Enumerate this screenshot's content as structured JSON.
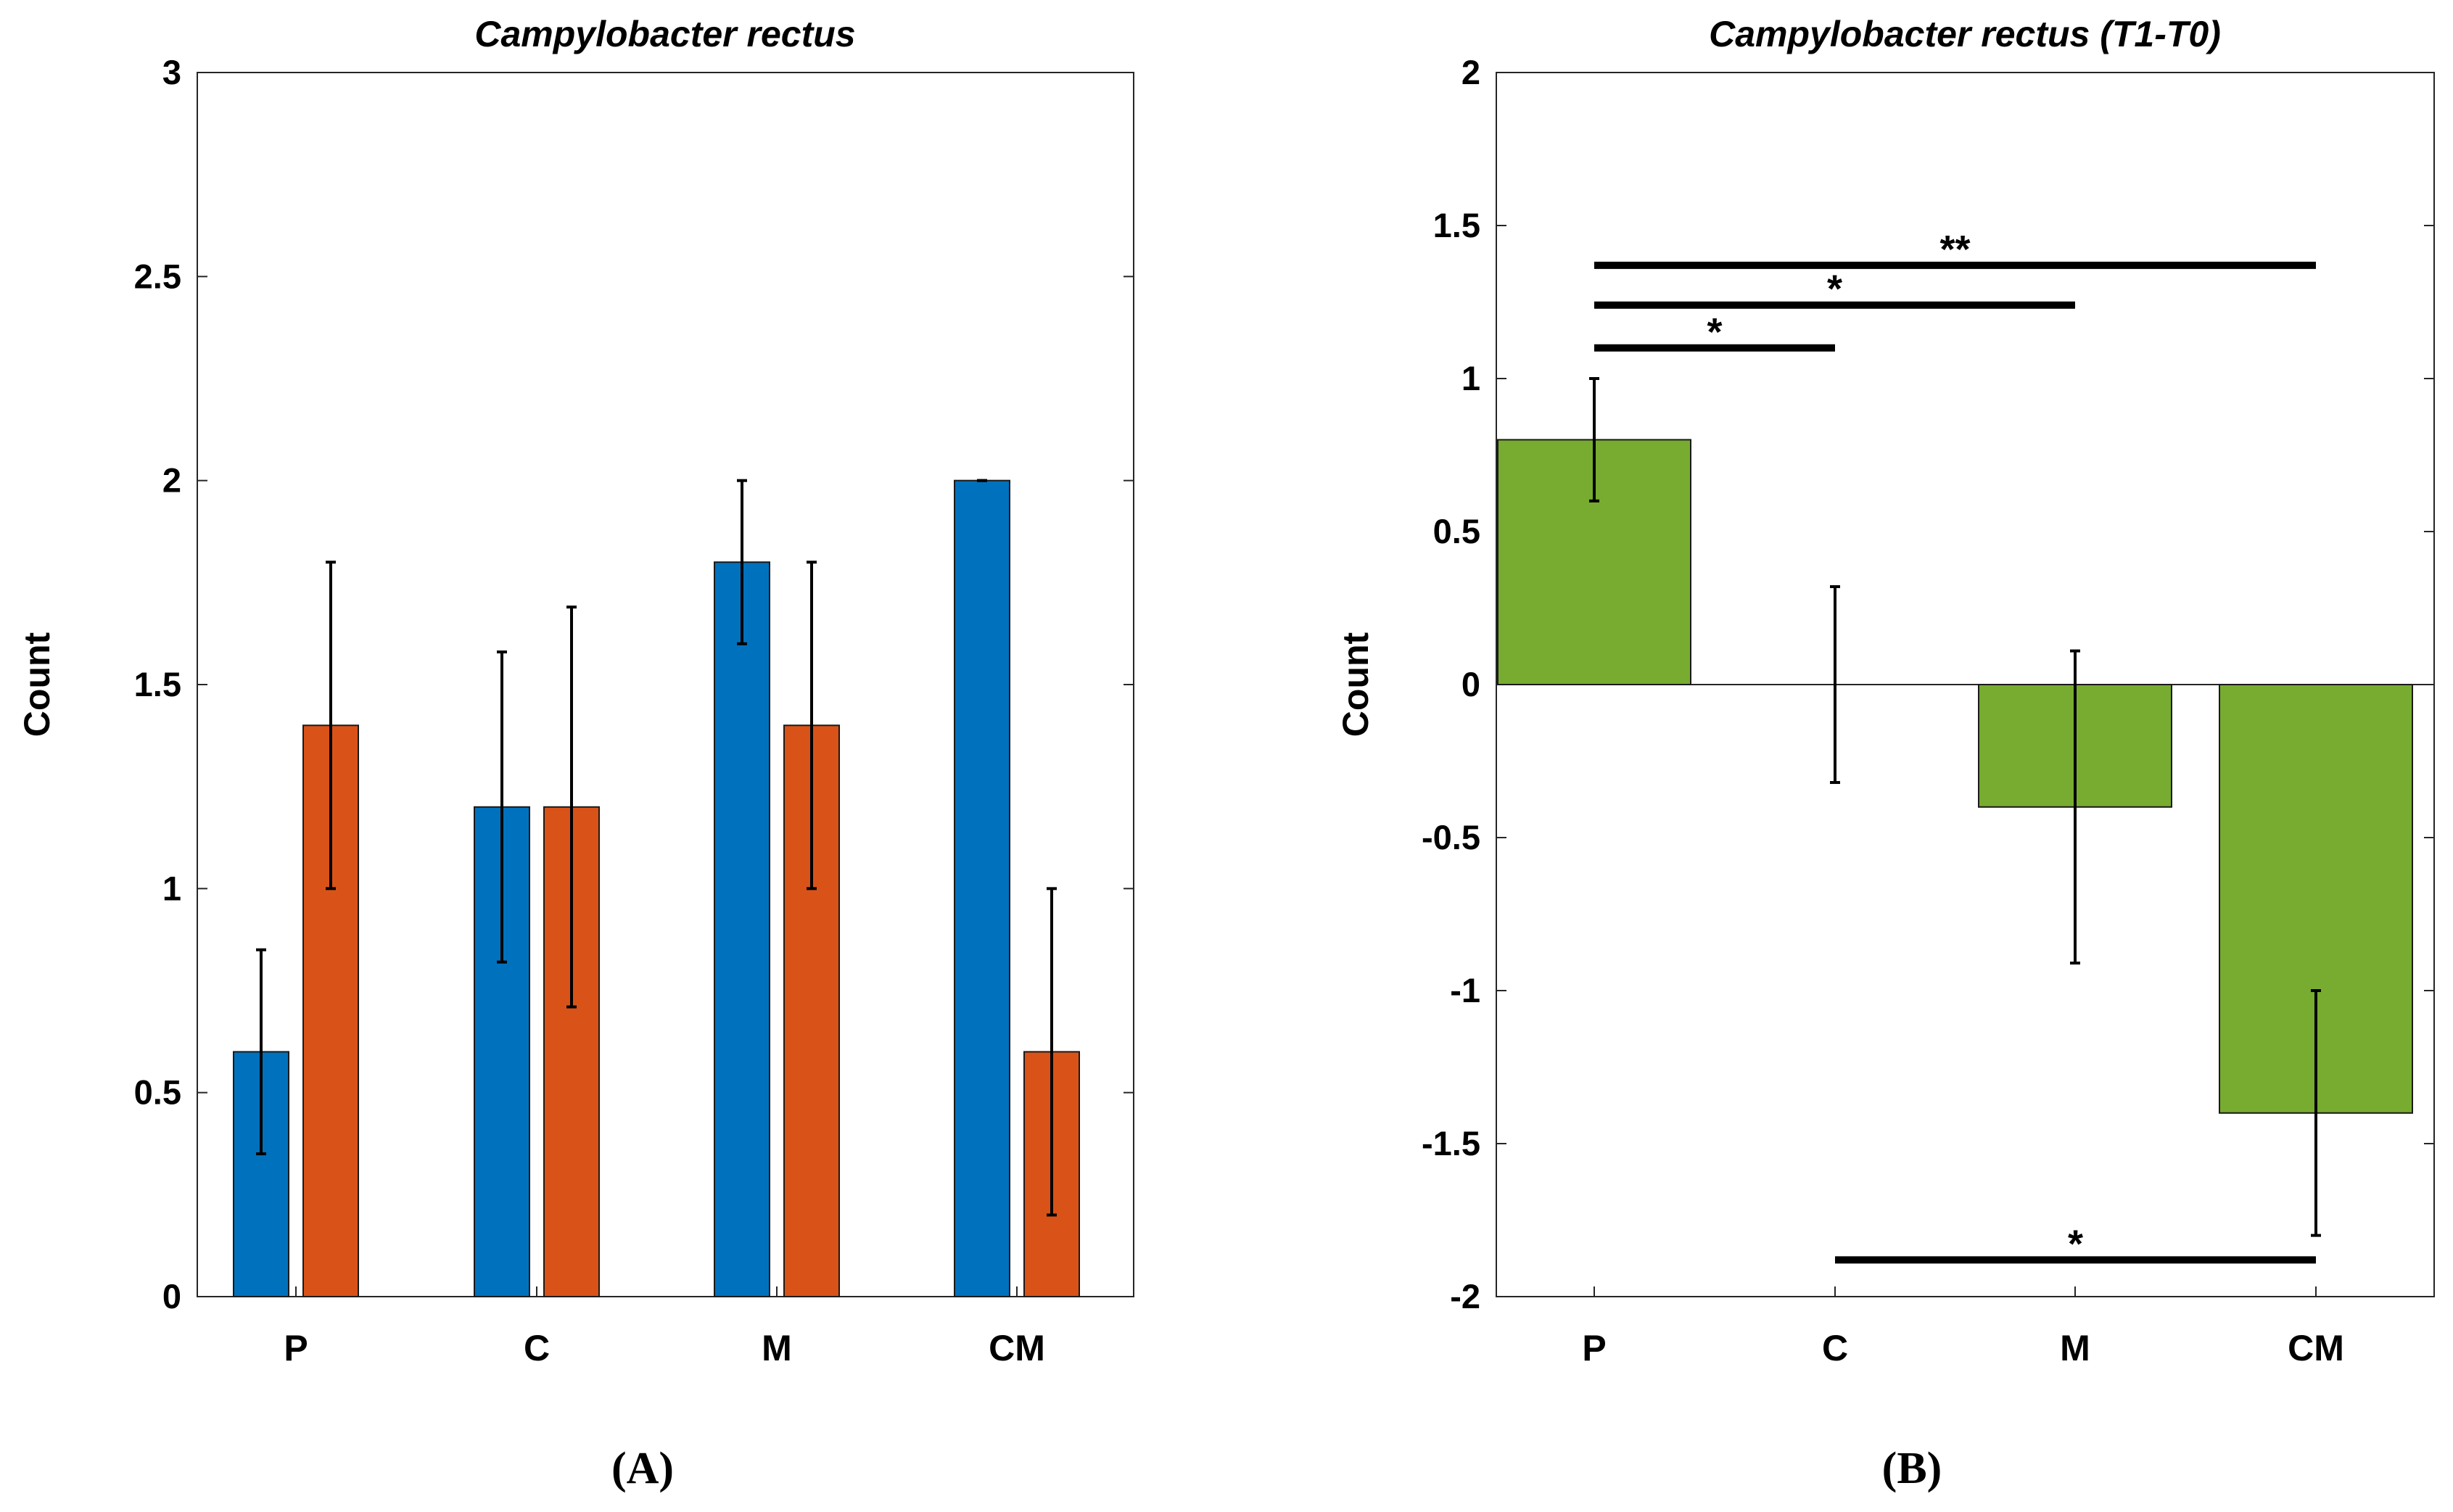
{
  "colors": {
    "t0": "#0072BD",
    "t1": "#D95319",
    "diff": "#77AC30",
    "axis": "#262626"
  },
  "chart_data": [
    {
      "panel": "(A)",
      "type": "bar",
      "title": "Campylobacter rectus",
      "ylabel": "Count",
      "xlabel": "",
      "ylim": [
        0,
        3
      ],
      "yticks": [
        0,
        0.5,
        1,
        1.5,
        2,
        2.5,
        3
      ],
      "ytick_labels": [
        "0",
        "0.5",
        "1",
        "1.5",
        "2",
        "2.5",
        "3"
      ],
      "categories": [
        "P",
        "C",
        "M",
        "CM"
      ],
      "grid": false,
      "series": [
        {
          "color": "#0072BD",
          "values": [
            0.6,
            1.2,
            1.8,
            2.0
          ],
          "err_low": [
            0.35,
            0.82,
            1.6,
            2.0
          ],
          "err_high": [
            0.85,
            1.58,
            2.0,
            2.0
          ]
        },
        {
          "color": "#D95319",
          "values": [
            1.4,
            1.2,
            1.4,
            0.6
          ],
          "err_low": [
            1.0,
            0.71,
            1.0,
            0.2
          ],
          "err_high": [
            1.8,
            1.69,
            1.8,
            1.0
          ]
        }
      ]
    },
    {
      "panel": "(B)",
      "type": "bar",
      "title": "Campylobacter rectus (T1-T0)",
      "ylabel": "Count",
      "xlabel": "",
      "ylim": [
        -2,
        2
      ],
      "yticks": [
        -2,
        -1.5,
        -1,
        -0.5,
        0,
        0.5,
        1,
        1.5,
        2
      ],
      "ytick_labels": [
        "-2",
        "-1.5",
        "-1",
        "-0.5",
        "0",
        "0.5",
        "1",
        "1.5",
        "2"
      ],
      "categories": [
        "P",
        "C",
        "M",
        "CM"
      ],
      "grid": false,
      "series": [
        {
          "color": "#77AC30",
          "values": [
            0.8,
            0.0,
            -0.4,
            -1.4
          ],
          "err_low": [
            0.6,
            -0.32,
            -0.91,
            -1.8
          ],
          "err_high": [
            1.0,
            0.32,
            0.11,
            -1.0
          ]
        }
      ],
      "significance": [
        {
          "from": "P",
          "to": "C",
          "y": 1.1,
          "label": "*"
        },
        {
          "from": "P",
          "to": "M",
          "y": 1.24,
          "label": "*"
        },
        {
          "from": "P",
          "to": "CM",
          "y": 1.37,
          "label": "**"
        },
        {
          "from": "C",
          "to": "CM",
          "y": -1.88,
          "label": "*"
        }
      ]
    }
  ]
}
